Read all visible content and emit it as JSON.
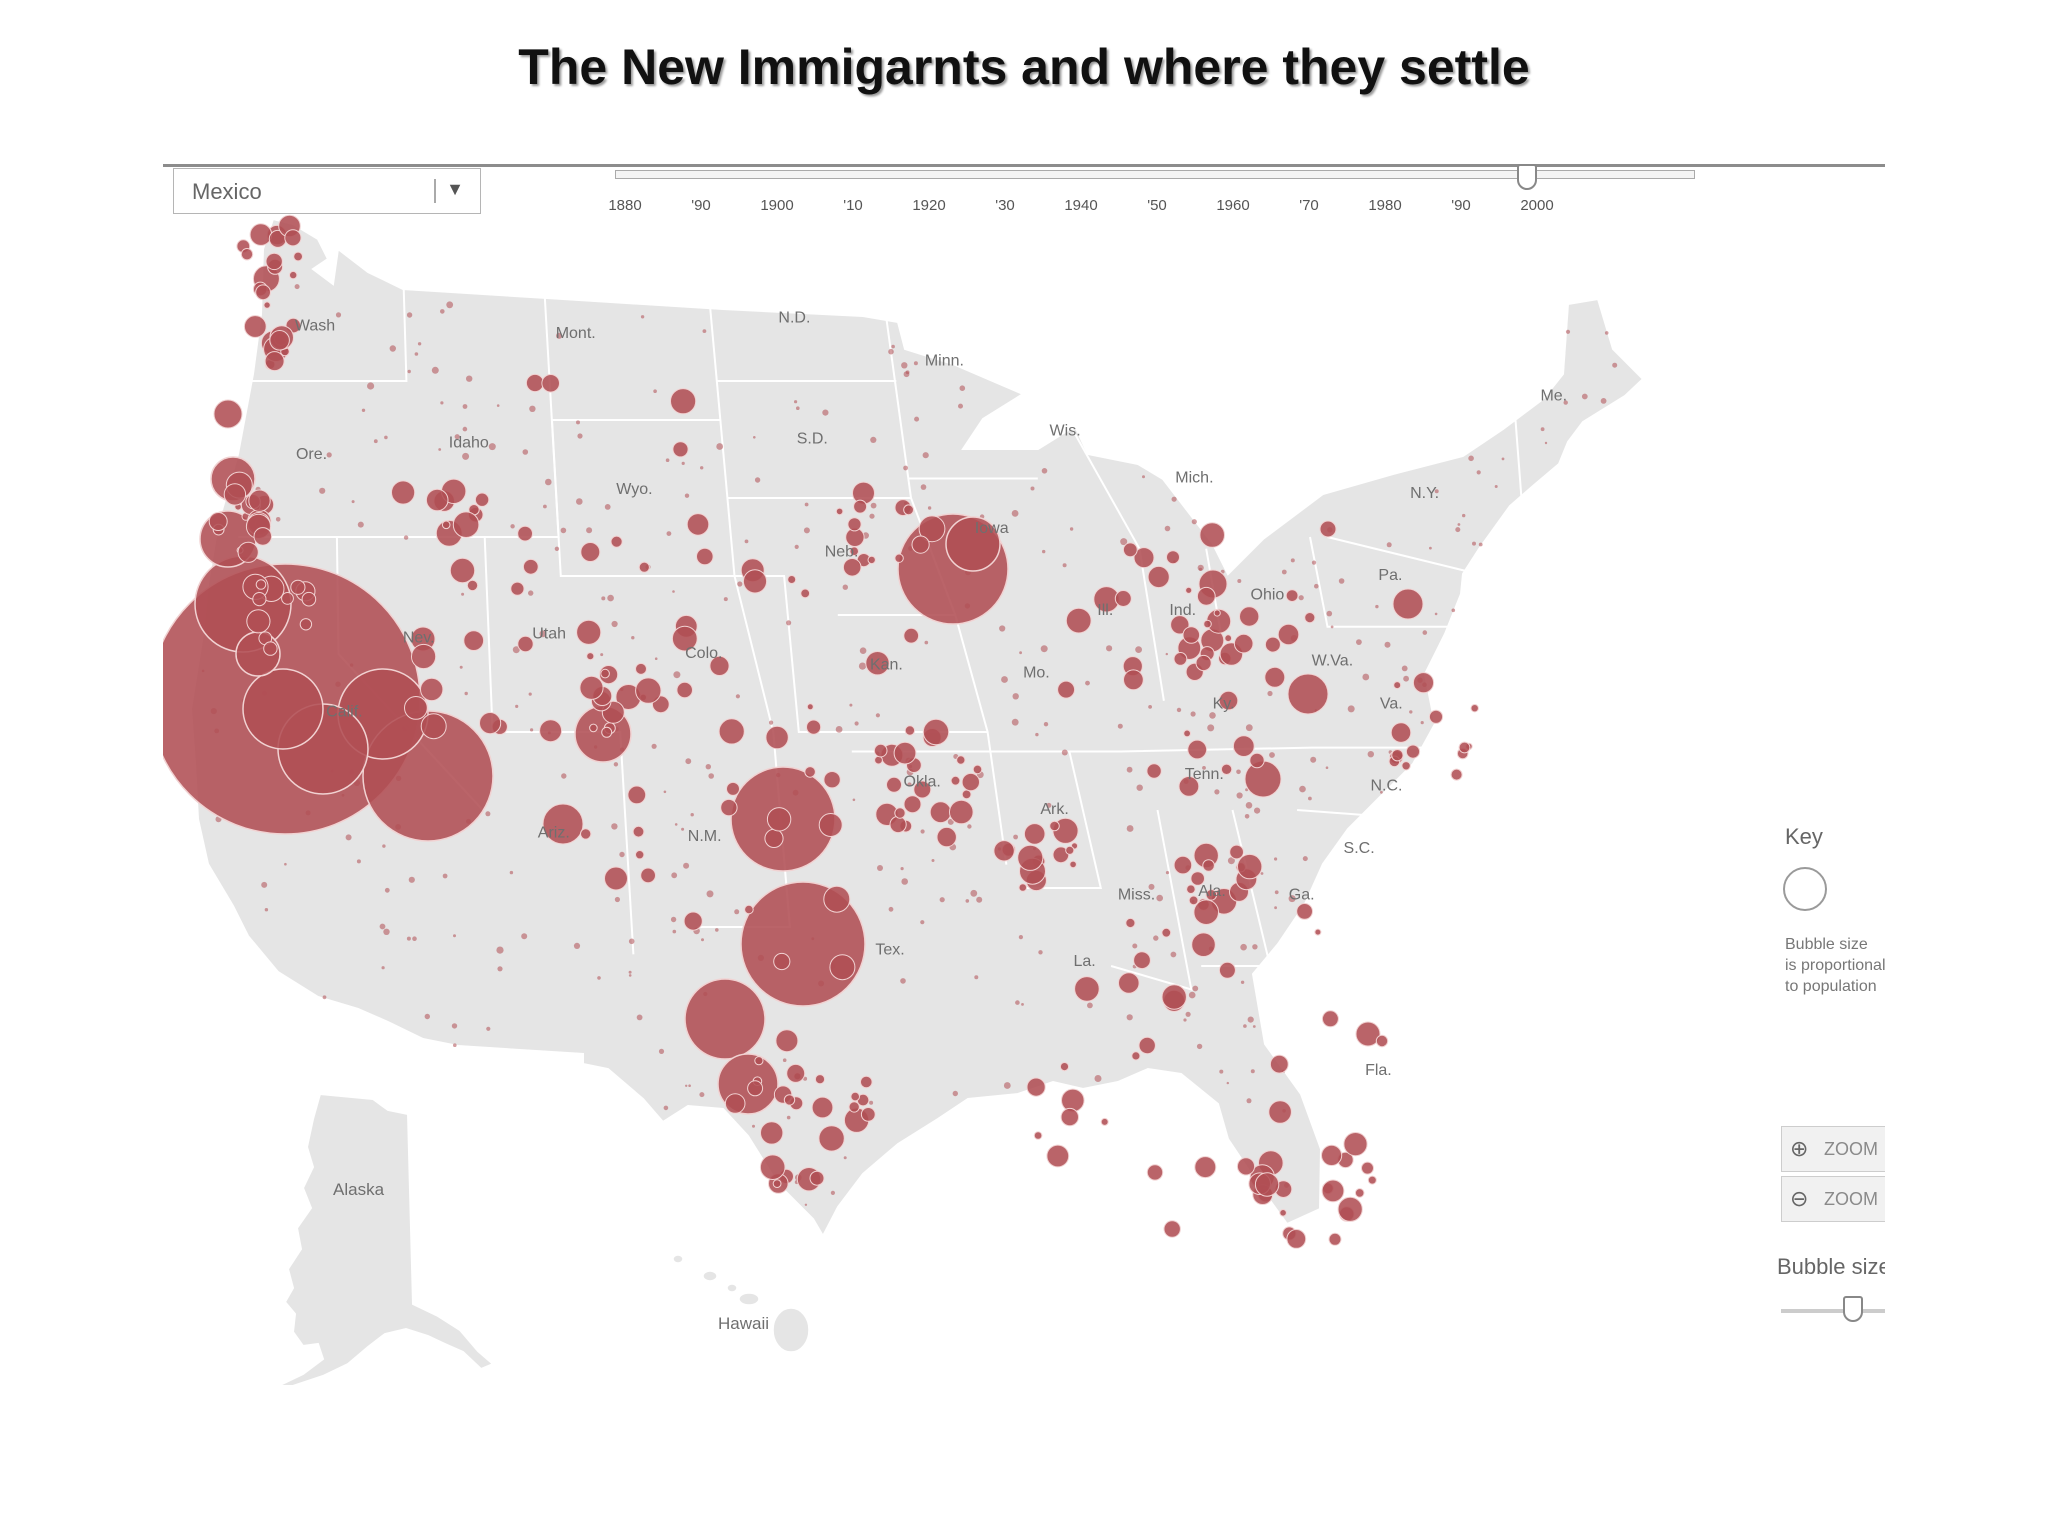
{
  "page": {
    "title": "The New Immigarnts and where they settle"
  },
  "controls": {
    "country_select": {
      "value": "Mexico",
      "arrow_icon": "chevron-down-icon"
    },
    "timeline": {
      "ticks": [
        "1880",
        "'90",
        "1900",
        "'10",
        "1920",
        "'30",
        "1940",
        "'50",
        "1960",
        "'70",
        "1980",
        "'90",
        "2000"
      ],
      "selected": "2000"
    },
    "zoom_in_label": "ZOOM",
    "zoom_out_label": "ZOOM",
    "zoom_in_icon": "zoom-in-icon",
    "zoom_out_icon": "zoom-out-icon"
  },
  "key": {
    "title": "Key",
    "note": "Bubble size\nis proportional\nto population",
    "bubble_size_label": "Bubble size",
    "bubble_size_level": 0.6
  },
  "map": {
    "land_color": "#e5e5e5",
    "border_color": "#ffffff",
    "bubble_color": "#b14e54",
    "labels": [
      {
        "text": "Wash",
        "lon": -120.8,
        "lat": 47.3
      },
      {
        "text": "Ore.",
        "lon": -121.0,
        "lat": 44.0
      },
      {
        "text": "Calif.",
        "lon": -119.8,
        "lat": 37.4
      },
      {
        "text": "Nev.",
        "lon": -116.8,
        "lat": 39.3
      },
      {
        "text": "Idaho",
        "lon": -114.5,
        "lat": 44.3
      },
      {
        "text": "Mont.",
        "lon": -109.8,
        "lat": 47.1
      },
      {
        "text": "Wyo.",
        "lon": -107.8,
        "lat": 43.1
      },
      {
        "text": "Utah",
        "lon": -111.6,
        "lat": 39.4
      },
      {
        "text": "Ariz.",
        "lon": -111.8,
        "lat": 34.3
      },
      {
        "text": "Colo.",
        "lon": -105.5,
        "lat": 38.9
      },
      {
        "text": "N.M.",
        "lon": -106.0,
        "lat": 34.2
      },
      {
        "text": "N.D.",
        "lon": -100.5,
        "lat": 47.5
      },
      {
        "text": "S.D.",
        "lon": -100.3,
        "lat": 44.4
      },
      {
        "text": "Neb.",
        "lon": -99.6,
        "lat": 41.5
      },
      {
        "text": "Kan.",
        "lon": -98.3,
        "lat": 38.6
      },
      {
        "text": "Okla.",
        "lon": -97.4,
        "lat": 35.6
      },
      {
        "text": "Tex.",
        "lon": -99.3,
        "lat": 31.3
      },
      {
        "text": "Minn.",
        "lon": -94.4,
        "lat": 46.4
      },
      {
        "text": "Iowa",
        "lon": -93.4,
        "lat": 42.1
      },
      {
        "text": "Mo.",
        "lon": -92.4,
        "lat": 38.4
      },
      {
        "text": "Ark.",
        "lon": -92.4,
        "lat": 34.9
      },
      {
        "text": "La.",
        "lon": -92.0,
        "lat": 31.0
      },
      {
        "text": "Wis.",
        "lon": -89.8,
        "lat": 44.6
      },
      {
        "text": "Ill.",
        "lon": -89.3,
        "lat": 40.0
      },
      {
        "text": "Mich.",
        "lon": -84.8,
        "lat": 43.4
      },
      {
        "text": "Ind.",
        "lon": -86.2,
        "lat": 40.0
      },
      {
        "text": "Ohio",
        "lon": -82.7,
        "lat": 40.4
      },
      {
        "text": "Ky.",
        "lon": -85.2,
        "lat": 37.6
      },
      {
        "text": "Tenn.",
        "lon": -86.4,
        "lat": 35.8
      },
      {
        "text": "Miss.",
        "lon": -89.7,
        "lat": 32.7
      },
      {
        "text": "Ala.",
        "lon": -86.8,
        "lat": 32.8
      },
      {
        "text": "Ga.",
        "lon": -83.4,
        "lat": 32.7
      },
      {
        "text": "Fla.",
        "lon": -81.6,
        "lat": 28.2
      },
      {
        "text": "S.C.",
        "lon": -80.9,
        "lat": 33.9
      },
      {
        "text": "N.C.",
        "lon": -79.4,
        "lat": 35.5
      },
      {
        "text": "Va.",
        "lon": -78.6,
        "lat": 37.6
      },
      {
        "text": "W.Va.",
        "lon": -80.6,
        "lat": 38.7
      },
      {
        "text": "Pa.",
        "lon": -77.6,
        "lat": 40.9
      },
      {
        "text": "N.Y.",
        "lon": -75.5,
        "lat": 43.0
      },
      {
        "text": "Me.",
        "lon": -69.2,
        "lat": 45.5
      }
    ],
    "inset_labels": {
      "alaska": "Alaska",
      "hawaii": "Hawaii"
    }
  }
}
